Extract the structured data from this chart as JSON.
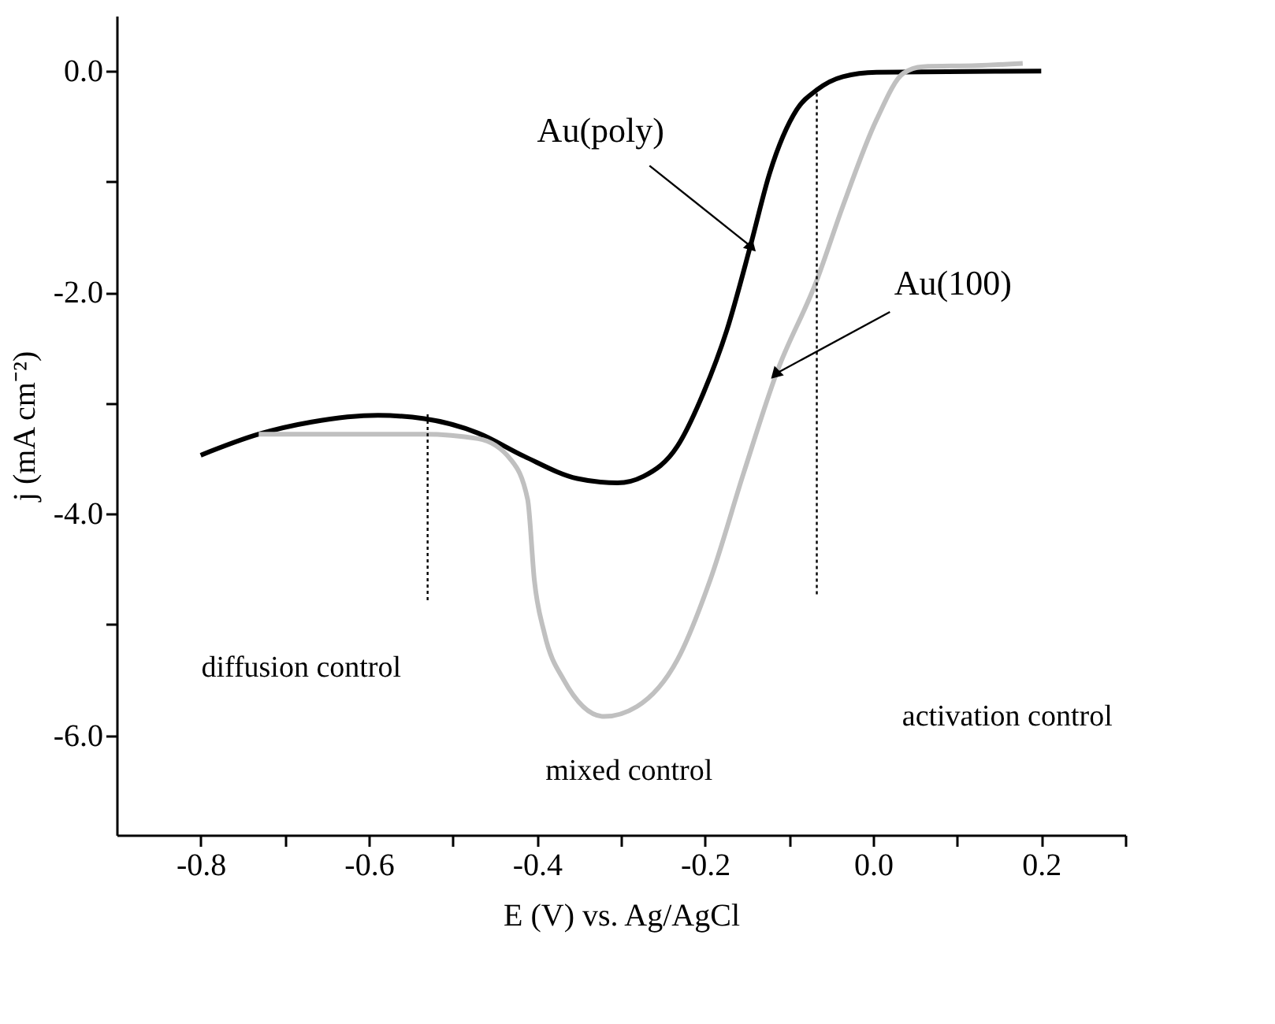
{
  "chart_data": {
    "type": "line",
    "xlabel": "E (V) vs. Ag/AgCl",
    "ylabel": "j (mA cm⁻²)",
    "xlim": [
      -0.9,
      0.3
    ],
    "ylim": [
      -6.9,
      0.5
    ],
    "xticks": [
      -0.8,
      {
        "value": -0.7,
        "label": null
      },
      -0.6,
      {
        "value": -0.5,
        "label": null
      },
      -0.4,
      {
        "value": -0.3,
        "label": null
      },
      -0.2,
      {
        "value": -0.1,
        "label": null
      },
      {
        "value": 0,
        "label": "0.0"
      },
      {
        "value": 0.1,
        "label": null
      },
      0.2,
      {
        "value": 0.3,
        "label": null
      }
    ],
    "yticks": [
      {
        "value": 0,
        "label": "0.0"
      },
      {
        "value": -1,
        "label": null
      },
      {
        "value": -2,
        "label": "-2.0"
      },
      {
        "value": -3,
        "label": null
      },
      {
        "value": -4,
        "label": "-4.0"
      },
      {
        "value": -5,
        "label": null
      },
      {
        "value": -6,
        "label": "-6.0"
      }
    ],
    "grid": false,
    "series": [
      {
        "name": "Au(poly)",
        "color": "#000000",
        "line_style": "solid",
        "x": [
          -0.8,
          -0.731,
          -0.668,
          -0.589,
          -0.534,
          -0.47,
          -0.415,
          -0.352,
          -0.304,
          -0.273,
          -0.233,
          -0.202,
          -0.174,
          -0.146,
          -0.123,
          -0.091,
          -0.067,
          -0.036,
          0.004,
          0.2
        ],
        "values": [
          -3.47,
          -3.28,
          -3.17,
          -3.11,
          -3.14,
          -3.27,
          -3.48,
          -3.68,
          -3.72,
          -3.66,
          -3.39,
          -2.91,
          -2.34,
          -1.58,
          -0.92,
          -0.35,
          -0.17,
          -0.05,
          -0.01,
          0.0
        ]
      },
      {
        "name": "Au(100)",
        "color": "#c0c0c0",
        "line_style": "solid",
        "x": [
          -0.731,
          -0.534,
          -0.47,
          -0.431,
          -0.411,
          -0.403,
          -0.391,
          -0.368,
          -0.32,
          -0.281,
          -0.233,
          -0.194,
          -0.154,
          -0.115,
          -0.067,
          -0.036,
          0.004,
          0.036,
          0.059,
          0.123,
          0.178
        ],
        "values": [
          -3.28,
          -3.28,
          -3.32,
          -3.51,
          -3.87,
          -4.6,
          -5.08,
          -5.5,
          -5.83,
          -5.74,
          -5.32,
          -4.6,
          -3.63,
          -2.73,
          -1.89,
          -1.22,
          -0.44,
          -0.02,
          0.04,
          0.05,
          0.07
        ]
      },
      {
        "color": "#000000",
        "line_style": "dotted",
        "x": [
          -0.53,
          -0.53
        ],
        "values": [
          -3.1,
          -4.8
        ]
      },
      {
        "color": "#000000",
        "line_style": "dotted",
        "x": [
          -0.067,
          -0.067
        ],
        "values": [
          -0.2,
          -4.75
        ]
      }
    ],
    "annotations": [
      "diffusion control",
      "mixed control",
      "activation control"
    ]
  }
}
